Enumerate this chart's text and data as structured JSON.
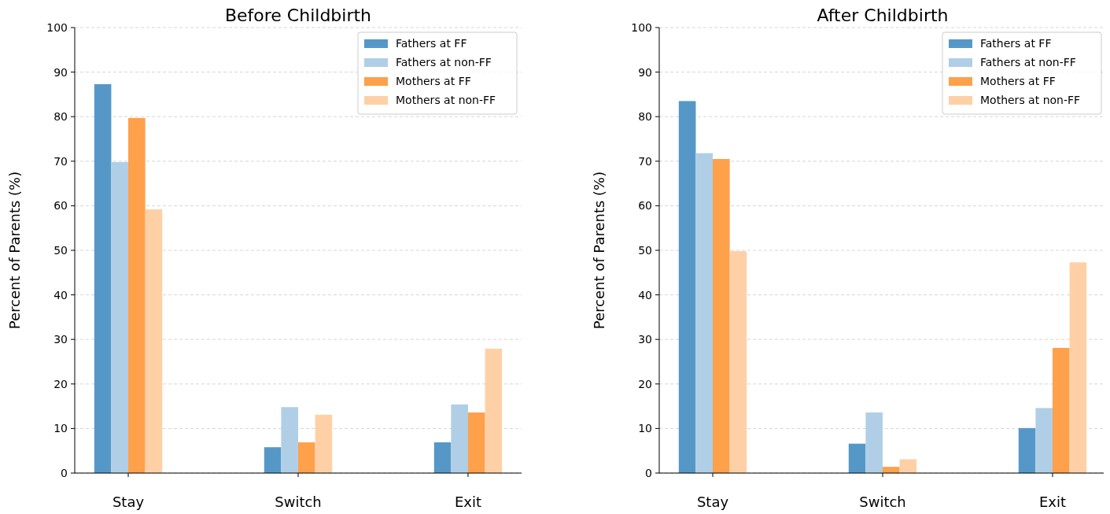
{
  "chart_data": [
    {
      "type": "bar",
      "title": "Before Childbirth",
      "ylabel": "Percent of Parents (%)",
      "categories": [
        "Stay",
        "Switch",
        "Exit"
      ],
      "series": [
        {
          "name": "Fathers at FF",
          "color": "#5598c8",
          "values": [
            87.3,
            5.8,
            6.9
          ]
        },
        {
          "name": "Fathers at non-FF",
          "color": "#b0cfe6",
          "values": [
            69.8,
            14.8,
            15.4
          ]
        },
        {
          "name": "Mothers at FF",
          "color": "#ffa04a",
          "values": [
            79.7,
            6.9,
            13.6
          ]
        },
        {
          "name": "Mothers at non-FF",
          "color": "#ffd0a6",
          "values": [
            59.2,
            13.1,
            27.9
          ]
        }
      ],
      "ylim": [
        0,
        100
      ],
      "yticks": [
        0,
        10,
        20,
        30,
        40,
        50,
        60,
        70,
        80,
        90,
        100
      ],
      "grid": "y",
      "legend": "top right"
    },
    {
      "type": "bar",
      "title": "After Childbirth",
      "ylabel": "Percent of Parents (%)",
      "categories": [
        "Stay",
        "Switch",
        "Exit"
      ],
      "series": [
        {
          "name": "Fathers at FF",
          "color": "#5598c8",
          "values": [
            83.5,
            6.6,
            10.1
          ]
        },
        {
          "name": "Fathers at non-FF",
          "color": "#b0cfe6",
          "values": [
            71.8,
            13.6,
            14.6
          ]
        },
        {
          "name": "Mothers at FF",
          "color": "#ffa04a",
          "values": [
            70.5,
            1.4,
            28.1
          ]
        },
        {
          "name": "Mothers at non-FF",
          "color": "#ffd0a6",
          "values": [
            49.8,
            3.1,
            47.3
          ]
        }
      ],
      "ylim": [
        0,
        100
      ],
      "yticks": [
        0,
        10,
        20,
        30,
        40,
        50,
        60,
        70,
        80,
        90,
        100
      ],
      "grid": "y",
      "legend": "top right"
    }
  ]
}
